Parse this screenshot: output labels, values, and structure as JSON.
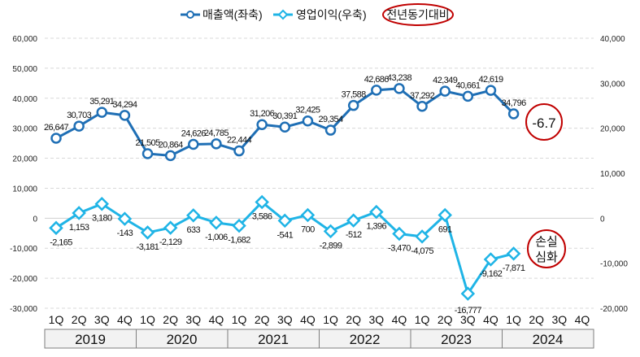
{
  "chart_data": {
    "type": "line",
    "legend": [
      {
        "name": "매출액(좌축)",
        "color": "#1f6fb5",
        "marker": "circle"
      },
      {
        "name": "영업이익(우축)",
        "color": "#1fb4e6",
        "marker": "diamond"
      }
    ],
    "legend_placement": "top-center",
    "legend_annotation": "전년동기대비",
    "quarters": [
      "1Q",
      "2Q",
      "3Q",
      "4Q",
      "1Q",
      "2Q",
      "3Q",
      "4Q",
      "1Q",
      "2Q",
      "3Q",
      "4Q",
      "1Q",
      "2Q",
      "3Q",
      "4Q",
      "1Q",
      "2Q",
      "3Q",
      "4Q",
      "1Q",
      "2Q",
      "3Q",
      "4Q"
    ],
    "years": [
      "2019",
      "2020",
      "2021",
      "2022",
      "2023",
      "2024"
    ],
    "left_axis": {
      "ylim": [
        -30000,
        60000
      ],
      "ticks": [
        "-30,000",
        "-20,000",
        "-10,000",
        "0",
        "10,000",
        "20,000",
        "30,000",
        "40,000",
        "50,000",
        "60,000"
      ]
    },
    "right_axis": {
      "ylim": [
        -20000,
        40000
      ],
      "ticks": [
        "-20,000",
        "-10,000",
        "0",
        "10,000",
        "20,000",
        "30,000",
        "40,000"
      ]
    },
    "series": [
      {
        "name": "매출액(좌축)",
        "axis": "left",
        "values": [
          26647,
          30703,
          35291,
          34294,
          21505,
          20864,
          24626,
          24785,
          22444,
          31206,
          30391,
          32425,
          29354,
          37588,
          42686,
          43238,
          37292,
          42349,
          40661,
          42619,
          34796
        ],
        "labels": [
          "26,647",
          "30,703",
          "35,291",
          "34,294",
          "21,505",
          "20,864",
          "24,626",
          "24,785",
          "22,444",
          "31,206",
          "30,391",
          "32,425",
          "29,354",
          "37,588",
          "42,686",
          "43,238",
          "37,292",
          "42,349",
          "40,661",
          "42,619",
          "34,796"
        ]
      },
      {
        "name": "영업이익(우축)",
        "axis": "right",
        "values": [
          -2165,
          1153,
          3180,
          -143,
          -3181,
          -2129,
          633,
          -1006,
          -1682,
          3586,
          -541,
          700,
          -2899,
          -512,
          1396,
          -3470,
          -4075,
          691,
          -16777,
          -9162,
          -7871
        ],
        "labels": [
          "-2,165",
          "1,153",
          "3,180",
          "-143",
          "-3,181",
          "-2,129",
          "633",
          "-1,006",
          "-1,682",
          "3,586",
          "-541",
          "700",
          "-2,899",
          "-512",
          "1,396",
          "-3,470",
          "-4,075",
          "691",
          "-16,777",
          "-9,162",
          "-7,871"
        ]
      }
    ],
    "annotations": {
      "sales_yoy": "-6.7",
      "op_note_line1": "손실",
      "op_note_line2": "심화"
    },
    "grid": true
  }
}
